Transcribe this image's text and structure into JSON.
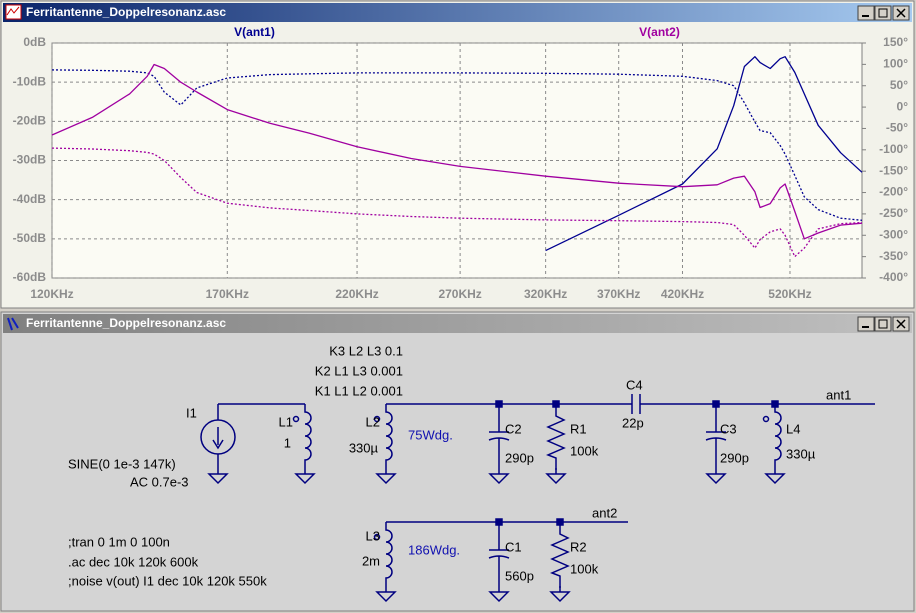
{
  "windows": [
    {
      "title": "Ferritantenne_Doppelresonanz.asc"
    },
    {
      "title": "Ferritantenne_Doppelresonanz.asc"
    }
  ],
  "chart_data": {
    "type": "line",
    "xscale": "log",
    "grid": true,
    "x": [
      120,
      130,
      140,
      145,
      147,
      150,
      155,
      160,
      170,
      185,
      200,
      220,
      245,
      270,
      320,
      370,
      420,
      450,
      465,
      475,
      485,
      490,
      500,
      510,
      515,
      525,
      535,
      550,
      575,
      600
    ],
    "series": [
      {
        "name": "V(ant1)",
        "color": "#000090",
        "values": [
          null,
          null,
          null,
          null,
          null,
          null,
          null,
          null,
          null,
          null,
          null,
          null,
          null,
          null,
          -53,
          -44,
          -36,
          -27,
          -16,
          -6,
          -3.5,
          -5,
          -6.5,
          -4,
          -3.5,
          -7.5,
          -13,
          -21,
          -28,
          -33
        ]
      },
      {
        "color": "#000090",
        "axis": "y2",
        "dashed": true,
        "values": [
          87,
          86,
          84,
          80,
          72,
          35,
          5,
          45,
          68,
          76,
          78,
          80,
          80,
          80,
          79,
          77,
          72,
          62,
          50,
          10,
          -35,
          -55,
          -60,
          -90,
          -110,
          -160,
          -210,
          -240,
          -260,
          -265
        ]
      },
      {
        "name": "V(ant2)",
        "color": "#a000a0",
        "values": [
          -23.5,
          -19,
          -13,
          -8.5,
          -5.5,
          -6.5,
          -10,
          -12.5,
          -17,
          -20.5,
          -23,
          -26.5,
          -29.5,
          -31.5,
          -34,
          -35.8,
          -36.7,
          -36.2,
          -34.5,
          -34,
          -38,
          -42,
          -41,
          -37,
          -36,
          -43,
          -50,
          -48.5,
          -46.5,
          -46
        ]
      },
      {
        "color": "#a000a0",
        "axis": "y2",
        "dashed": true,
        "values": [
          -96,
          -98,
          -102,
          -106,
          -110,
          -125,
          -165,
          -200,
          -225,
          -236,
          -242,
          -250,
          -256,
          -260,
          -264,
          -266,
          -268,
          -270,
          -275,
          -300,
          -330,
          -310,
          -292,
          -285,
          -300,
          -350,
          -330,
          -285,
          -273,
          -270
        ]
      }
    ],
    "xlim": [
      120,
      600
    ],
    "xticks": [
      {
        "value": 120,
        "label": "120KHz"
      },
      {
        "value": 170,
        "label": "170KHz"
      },
      {
        "value": 220,
        "label": "220KHz"
      },
      {
        "value": 270,
        "label": "270KHz"
      },
      {
        "value": 320,
        "label": "320KHz"
      },
      {
        "value": 370,
        "label": "370KHz"
      },
      {
        "value": 420,
        "label": "420KHz"
      },
      {
        "value": 520,
        "label": "520KHz"
      }
    ],
    "ylim": [
      -60,
      0
    ],
    "yticks": [
      {
        "value": 0,
        "label": "0dB"
      },
      {
        "value": -10,
        "label": "-10dB"
      },
      {
        "value": -20,
        "label": "-20dB"
      },
      {
        "value": -30,
        "label": "-30dB"
      },
      {
        "value": -40,
        "label": "-40dB"
      },
      {
        "value": -50,
        "label": "-50dB"
      },
      {
        "value": -60,
        "label": "-60dB"
      }
    ],
    "y2lim": [
      -400,
      150
    ],
    "y2ticks": [
      {
        "value": 150,
        "label": "150°"
      },
      {
        "value": 100,
        "label": "100°"
      },
      {
        "value": 50,
        "label": "50°"
      },
      {
        "value": 0,
        "label": "0°"
      },
      {
        "value": -50,
        "label": "-50°"
      },
      {
        "value": -100,
        "label": "-100°"
      },
      {
        "value": -150,
        "label": "-150°"
      },
      {
        "value": -200,
        "label": "-200°"
      },
      {
        "value": -250,
        "label": "-250°"
      },
      {
        "value": -300,
        "label": "-300°"
      },
      {
        "value": -350,
        "label": "-350°"
      },
      {
        "value": -400,
        "label": "-400°"
      }
    ]
  },
  "schematic": {
    "couplings": [
      "K3 L2 L3 0.1",
      "K2 L1 L3 0.001",
      "K1 L1 L2 0.001"
    ],
    "source": {
      "name": "I1",
      "value": "SINE(0 1e-3 147k)",
      "ac": "AC 0.7e-3"
    },
    "components": [
      {
        "name": "L1",
        "value": "1"
      },
      {
        "name": "L2",
        "value": "330µ",
        "note": "75Wdg."
      },
      {
        "name": "C2",
        "value": "290p"
      },
      {
        "name": "R1",
        "value": "100k"
      },
      {
        "name": "C4",
        "value": "22p"
      },
      {
        "name": "C3",
        "value": "290p"
      },
      {
        "name": "L4",
        "value": "330µ"
      },
      {
        "name": "L3",
        "value": "2m",
        "note": "186Wdg."
      },
      {
        "name": "C1",
        "value": "560p"
      },
      {
        "name": "R2",
        "value": "100k"
      }
    ],
    "nets": [
      "ant1",
      "ant2"
    ],
    "commands": [
      ";tran 0 1m 0 100n",
      ".ac dec 10k 120k 600k",
      ";noise v(out) I1 dec 10k 120k 550k"
    ]
  }
}
